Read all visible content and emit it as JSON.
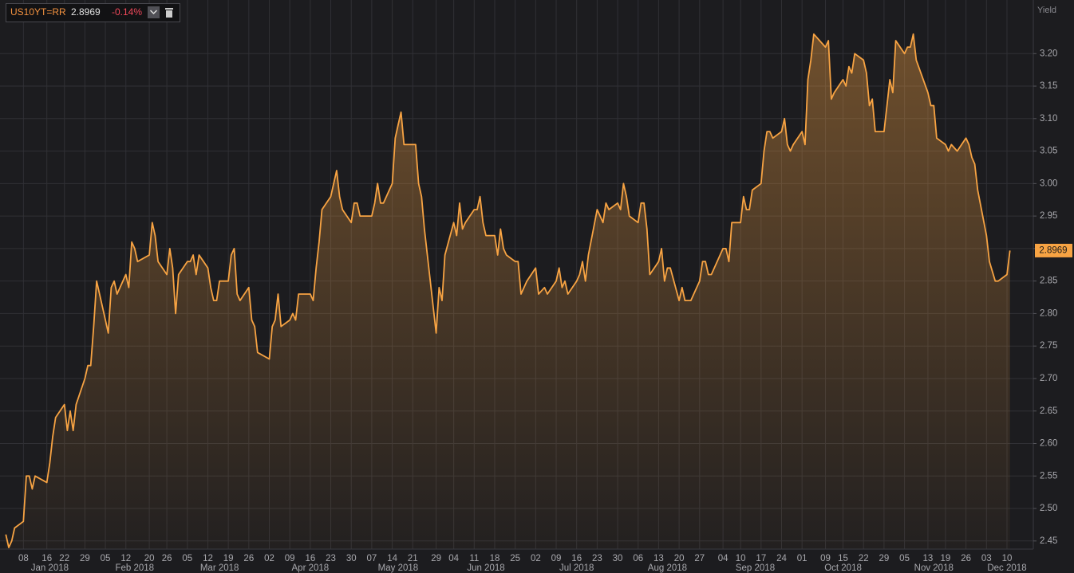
{
  "header": {
    "ric": "US10YT=RR",
    "change": "-0.14%"
  },
  "chart_data": {
    "type": "line",
    "y_axis_label": "Yield",
    "color": "#f7a343",
    "grid": true,
    "xlim": [
      "2017-12-31",
      "2018-12-19"
    ],
    "ylim": [
      2.4375,
      3.2825
    ],
    "yticks": [
      2.45,
      {
        "value": 2.5,
        "label": "2.50"
      },
      2.55,
      {
        "value": 2.6,
        "label": "2.60"
      },
      2.65,
      {
        "value": 2.7,
        "label": "2.70"
      },
      2.75,
      {
        "value": 2.8,
        "label": "2.80"
      },
      2.85,
      {
        "value": 2.9,
        "label": "2.90"
      },
      2.95,
      {
        "value": 3.0,
        "label": "3.00"
      },
      3.05,
      {
        "value": 3.1,
        "label": "3.10"
      },
      3.15,
      {
        "value": 3.2,
        "label": "3.20"
      }
    ],
    "xticks": [
      {
        "value": "2018-01-08",
        "label": "08"
      },
      {
        "value": "2018-01-16",
        "label": "16"
      },
      {
        "value": "2018-01-22",
        "label": "22"
      },
      {
        "value": "2018-01-29",
        "label": "29"
      },
      {
        "value": "2018-02-05",
        "label": "05"
      },
      {
        "value": "2018-02-12",
        "label": "12"
      },
      {
        "value": "2018-02-20",
        "label": "20"
      },
      {
        "value": "2018-02-26",
        "label": "26"
      },
      {
        "value": "2018-03-05",
        "label": "05"
      },
      {
        "value": "2018-03-12",
        "label": "12"
      },
      {
        "value": "2018-03-19",
        "label": "19"
      },
      {
        "value": "2018-03-26",
        "label": "26"
      },
      {
        "value": "2018-04-02",
        "label": "02"
      },
      {
        "value": "2018-04-09",
        "label": "09"
      },
      {
        "value": "2018-04-16",
        "label": "16"
      },
      {
        "value": "2018-04-23",
        "label": "23"
      },
      {
        "value": "2018-04-30",
        "label": "30"
      },
      {
        "value": "2018-05-07",
        "label": "07"
      },
      {
        "value": "2018-05-14",
        "label": "14"
      },
      {
        "value": "2018-05-21",
        "label": "21"
      },
      {
        "value": "2018-05-29",
        "label": "29"
      },
      {
        "value": "2018-06-04",
        "label": "04"
      },
      {
        "value": "2018-06-11",
        "label": "11"
      },
      {
        "value": "2018-06-18",
        "label": "18"
      },
      {
        "value": "2018-06-25",
        "label": "25"
      },
      {
        "value": "2018-07-02",
        "label": "02"
      },
      {
        "value": "2018-07-09",
        "label": "09"
      },
      {
        "value": "2018-07-16",
        "label": "16"
      },
      {
        "value": "2018-07-23",
        "label": "23"
      },
      {
        "value": "2018-07-30",
        "label": "30"
      },
      {
        "value": "2018-08-06",
        "label": "06"
      },
      {
        "value": "2018-08-13",
        "label": "13"
      },
      {
        "value": "2018-08-20",
        "label": "20"
      },
      {
        "value": "2018-08-27",
        "label": "27"
      },
      {
        "value": "2018-09-04",
        "label": "04"
      },
      {
        "value": "2018-09-10",
        "label": "10"
      },
      {
        "value": "2018-09-17",
        "label": "17"
      },
      {
        "value": "2018-09-24",
        "label": "24"
      },
      {
        "value": "2018-10-01",
        "label": "01"
      },
      {
        "value": "2018-10-09",
        "label": "09"
      },
      {
        "value": "2018-10-15",
        "label": "15"
      },
      {
        "value": "2018-10-22",
        "label": "22"
      },
      {
        "value": "2018-10-29",
        "label": "29"
      },
      {
        "value": "2018-11-05",
        "label": "05"
      },
      {
        "value": "2018-11-13",
        "label": "13"
      },
      {
        "value": "2018-11-19",
        "label": "19"
      },
      {
        "value": "2018-11-26",
        "label": "26"
      },
      {
        "value": "2018-12-03",
        "label": "03"
      },
      {
        "value": "2018-12-10",
        "label": "10"
      }
    ],
    "month_labels": [
      {
        "value": "2018-01-17",
        "label": "Jan 2018"
      },
      {
        "value": "2018-02-15",
        "label": "Feb 2018"
      },
      {
        "value": "2018-03-16",
        "label": "Mar 2018"
      },
      {
        "value": "2018-04-16",
        "label": "Apr 2018"
      },
      {
        "value": "2018-05-16",
        "label": "May 2018"
      },
      {
        "value": "2018-06-15",
        "label": "Jun 2018"
      },
      {
        "value": "2018-07-16",
        "label": "Jul 2018"
      },
      {
        "value": "2018-08-16",
        "label": "Aug 2018"
      },
      {
        "value": "2018-09-15",
        "label": "Sep 2018"
      },
      {
        "value": "2018-10-15",
        "label": "Oct 2018"
      },
      {
        "value": "2018-11-15",
        "label": "Nov 2018"
      },
      {
        "value": "2018-12-10",
        "label": "Dec 2018"
      }
    ],
    "x": [
      "2018-01-02",
      "2018-01-03",
      "2018-01-04",
      "2018-01-05",
      "2018-01-08",
      "2018-01-09",
      "2018-01-10",
      "2018-01-11",
      "2018-01-12",
      "2018-01-16",
      "2018-01-17",
      "2018-01-18",
      "2018-01-19",
      "2018-01-22",
      "2018-01-23",
      "2018-01-24",
      "2018-01-25",
      "2018-01-26",
      "2018-01-29",
      "2018-01-30",
      "2018-01-31",
      "2018-02-01",
      "2018-02-02",
      "2018-02-05",
      "2018-02-06",
      "2018-02-07",
      "2018-02-08",
      "2018-02-09",
      "2018-02-12",
      "2018-02-13",
      "2018-02-14",
      "2018-02-15",
      "2018-02-16",
      "2018-02-20",
      "2018-02-21",
      "2018-02-22",
      "2018-02-23",
      "2018-02-26",
      "2018-02-27",
      "2018-02-28",
      "2018-03-01",
      "2018-03-02",
      "2018-03-05",
      "2018-03-06",
      "2018-03-07",
      "2018-03-08",
      "2018-03-09",
      "2018-03-12",
      "2018-03-13",
      "2018-03-14",
      "2018-03-15",
      "2018-03-16",
      "2018-03-19",
      "2018-03-20",
      "2018-03-21",
      "2018-03-22",
      "2018-03-23",
      "2018-03-26",
      "2018-03-27",
      "2018-03-28",
      "2018-03-29",
      "2018-04-02",
      "2018-04-03",
      "2018-04-04",
      "2018-04-05",
      "2018-04-06",
      "2018-04-09",
      "2018-04-10",
      "2018-04-11",
      "2018-04-12",
      "2018-04-13",
      "2018-04-16",
      "2018-04-17",
      "2018-04-18",
      "2018-04-19",
      "2018-04-20",
      "2018-04-23",
      "2018-04-24",
      "2018-04-25",
      "2018-04-26",
      "2018-04-27",
      "2018-04-30",
      "2018-05-01",
      "2018-05-02",
      "2018-05-03",
      "2018-05-04",
      "2018-05-07",
      "2018-05-08",
      "2018-05-09",
      "2018-05-10",
      "2018-05-11",
      "2018-05-14",
      "2018-05-15",
      "2018-05-16",
      "2018-05-17",
      "2018-05-18",
      "2018-05-21",
      "2018-05-22",
      "2018-05-23",
      "2018-05-24",
      "2018-05-25",
      "2018-05-29",
      "2018-05-30",
      "2018-05-31",
      "2018-06-01",
      "2018-06-04",
      "2018-06-05",
      "2018-06-06",
      "2018-06-07",
      "2018-06-08",
      "2018-06-11",
      "2018-06-12",
      "2018-06-13",
      "2018-06-14",
      "2018-06-15",
      "2018-06-18",
      "2018-06-19",
      "2018-06-20",
      "2018-06-21",
      "2018-06-22",
      "2018-06-25",
      "2018-06-26",
      "2018-06-27",
      "2018-06-28",
      "2018-06-29",
      "2018-07-02",
      "2018-07-03",
      "2018-07-05",
      "2018-07-06",
      "2018-07-09",
      "2018-07-10",
      "2018-07-11",
      "2018-07-12",
      "2018-07-13",
      "2018-07-16",
      "2018-07-17",
      "2018-07-18",
      "2018-07-19",
      "2018-07-20",
      "2018-07-23",
      "2018-07-24",
      "2018-07-25",
      "2018-07-26",
      "2018-07-27",
      "2018-07-30",
      "2018-07-31",
      "2018-08-01",
      "2018-08-02",
      "2018-08-03",
      "2018-08-06",
      "2018-08-07",
      "2018-08-08",
      "2018-08-09",
      "2018-08-10",
      "2018-08-13",
      "2018-08-14",
      "2018-08-15",
      "2018-08-16",
      "2018-08-17",
      "2018-08-20",
      "2018-08-21",
      "2018-08-22",
      "2018-08-23",
      "2018-08-24",
      "2018-08-27",
      "2018-08-28",
      "2018-08-29",
      "2018-08-30",
      "2018-08-31",
      "2018-09-04",
      "2018-09-05",
      "2018-09-06",
      "2018-09-07",
      "2018-09-10",
      "2018-09-11",
      "2018-09-12",
      "2018-09-13",
      "2018-09-14",
      "2018-09-17",
      "2018-09-18",
      "2018-09-19",
      "2018-09-20",
      "2018-09-21",
      "2018-09-24",
      "2018-09-25",
      "2018-09-26",
      "2018-09-27",
      "2018-09-28",
      "2018-10-01",
      "2018-10-02",
      "2018-10-03",
      "2018-10-04",
      "2018-10-05",
      "2018-10-09",
      "2018-10-10",
      "2018-10-11",
      "2018-10-12",
      "2018-10-15",
      "2018-10-16",
      "2018-10-17",
      "2018-10-18",
      "2018-10-19",
      "2018-10-22",
      "2018-10-23",
      "2018-10-24",
      "2018-10-25",
      "2018-10-26",
      "2018-10-29",
      "2018-10-30",
      "2018-10-31",
      "2018-11-01",
      "2018-11-02",
      "2018-11-05",
      "2018-11-06",
      "2018-11-07",
      "2018-11-08",
      "2018-11-09",
      "2018-11-13",
      "2018-11-14",
      "2018-11-15",
      "2018-11-16",
      "2018-11-19",
      "2018-11-20",
      "2018-11-21",
      "2018-11-23",
      "2018-11-26",
      "2018-11-27",
      "2018-11-28",
      "2018-11-29",
      "2018-11-30",
      "2018-12-03",
      "2018-12-04",
      "2018-12-06",
      "2018-12-07",
      "2018-12-10",
      "2018-12-11"
    ],
    "values": [
      2.46,
      2.44,
      2.45,
      2.47,
      2.48,
      2.55,
      2.55,
      2.53,
      2.55,
      2.54,
      2.57,
      2.61,
      2.64,
      2.66,
      2.62,
      2.65,
      2.62,
      2.66,
      2.7,
      2.72,
      2.72,
      2.78,
      2.85,
      2.79,
      2.77,
      2.84,
      2.85,
      2.83,
      2.86,
      2.84,
      2.91,
      2.9,
      2.88,
      2.89,
      2.94,
      2.92,
      2.88,
      2.86,
      2.9,
      2.87,
      2.8,
      2.86,
      2.88,
      2.88,
      2.89,
      2.86,
      2.89,
      2.87,
      2.84,
      2.82,
      2.82,
      2.85,
      2.85,
      2.89,
      2.9,
      2.83,
      2.82,
      2.84,
      2.79,
      2.78,
      2.74,
      2.73,
      2.78,
      2.79,
      2.83,
      2.78,
      2.79,
      2.8,
      2.79,
      2.83,
      2.83,
      2.83,
      2.82,
      2.87,
      2.91,
      2.96,
      2.98,
      3.0,
      3.02,
      2.98,
      2.96,
      2.94,
      2.97,
      2.97,
      2.95,
      2.95,
      2.95,
      2.97,
      3.0,
      2.97,
      2.97,
      3.0,
      3.07,
      3.09,
      3.11,
      3.06,
      3.06,
      3.06,
      3.0,
      2.98,
      2.93,
      2.77,
      2.84,
      2.82,
      2.89,
      2.94,
      2.92,
      2.97,
      2.93,
      2.94,
      2.96,
      2.96,
      2.98,
      2.94,
      2.92,
      2.92,
      2.89,
      2.93,
      2.9,
      2.89,
      2.88,
      2.88,
      2.83,
      2.84,
      2.85,
      2.87,
      2.83,
      2.84,
      2.83,
      2.85,
      2.87,
      2.84,
      2.85,
      2.83,
      2.85,
      2.86,
      2.88,
      2.85,
      2.89,
      2.96,
      2.95,
      2.94,
      2.97,
      2.96,
      2.97,
      2.96,
      3.0,
      2.98,
      2.95,
      2.94,
      2.97,
      2.97,
      2.93,
      2.86,
      2.88,
      2.9,
      2.85,
      2.87,
      2.87,
      2.82,
      2.84,
      2.82,
      2.82,
      2.82,
      2.85,
      2.88,
      2.88,
      2.86,
      2.86,
      2.9,
      2.9,
      2.88,
      2.94,
      2.94,
      2.98,
      2.96,
      2.96,
      2.99,
      3.0,
      3.05,
      3.08,
      3.08,
      3.07,
      3.08,
      3.1,
      3.06,
      3.05,
      3.06,
      3.08,
      3.06,
      3.16,
      3.19,
      3.23,
      3.21,
      3.22,
      3.13,
      3.14,
      3.16,
      3.15,
      3.18,
      3.17,
      3.2,
      3.19,
      3.17,
      3.12,
      3.13,
      3.08,
      3.08,
      3.12,
      3.16,
      3.14,
      3.22,
      3.2,
      3.21,
      3.21,
      3.23,
      3.19,
      3.14,
      3.12,
      3.12,
      3.07,
      3.06,
      3.05,
      3.06,
      3.05,
      3.07,
      3.06,
      3.04,
      3.03,
      2.99,
      2.92,
      2.88,
      2.85,
      2.85,
      2.86,
      2.8969
    ]
  }
}
